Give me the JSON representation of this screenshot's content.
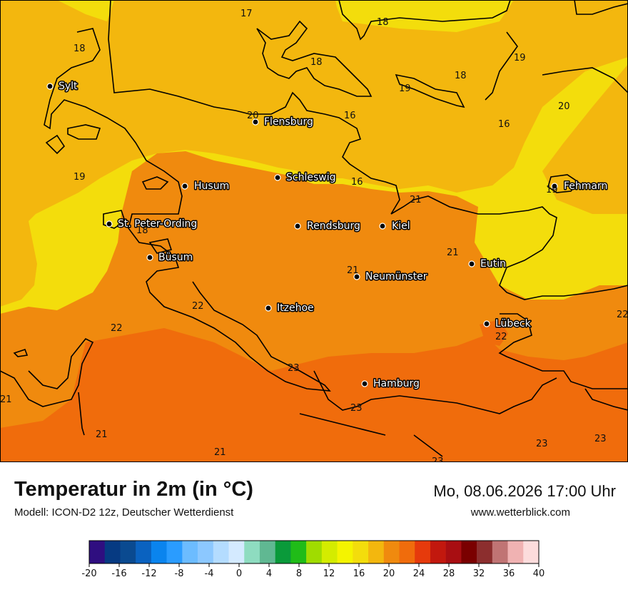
{
  "title": "Temperatur in 2m (in °C)",
  "model": "Modell: ICON-D2 12z, Deutscher Wetterdienst",
  "datetime": "Mo, 08.06.2026 17:00 Uhr",
  "website": "www.wetterblick.com",
  "colors": {
    "t16": "#f3dd0c",
    "t18": "#f3b70e",
    "t20": "#f08a0e",
    "t22": "#f06c0c",
    "sea_cold": "#eaf700",
    "coast": "#000000"
  },
  "cities": [
    {
      "name": "Sylt"
    },
    {
      "name": "Flensburg"
    },
    {
      "name": "Schleswig"
    },
    {
      "name": "Husum"
    },
    {
      "name": "Fehmarn"
    },
    {
      "name": "St. Peter-Ording"
    },
    {
      "name": "Rendsburg"
    },
    {
      "name": "Kiel"
    },
    {
      "name": "Büsum"
    },
    {
      "name": "Eutin"
    },
    {
      "name": "Neumünster"
    },
    {
      "name": "Itzehoe"
    },
    {
      "name": "Lübeck"
    },
    {
      "name": "Hamburg"
    }
  ],
  "isotherm_labels": [
    "17",
    "18",
    "18",
    "18",
    "19",
    "18",
    "19",
    "20",
    "20",
    "16",
    "16",
    "19",
    "16",
    "19",
    "21",
    "18",
    "21",
    "21",
    "22",
    "22",
    "22",
    "22",
    "23",
    "21",
    "23",
    "21",
    "21",
    "23",
    "23",
    "23"
  ],
  "legend": {
    "ticks": [
      "-20",
      "-16",
      "-12",
      "-8",
      "-4",
      "0",
      "4",
      "8",
      "12",
      "16",
      "20",
      "24",
      "28",
      "32",
      "36",
      "40"
    ],
    "colors": [
      "#2f0e80",
      "#063a82",
      "#0a4a90",
      "#0a62c0",
      "#0a84ee",
      "#2a9cff",
      "#6cbcff",
      "#8cc8ff",
      "#b4dcff",
      "#d4eaff",
      "#8edcc0",
      "#60b892",
      "#0a9a3a",
      "#20bc18",
      "#a0dc00",
      "#d4ec00",
      "#f4f400",
      "#f3dd0c",
      "#f3b70e",
      "#f08a0e",
      "#f06c0c",
      "#e63a0c",
      "#c2180e",
      "#a80e12",
      "#7a0000",
      "#8c2e2e",
      "#c07474",
      "#f0b2b2",
      "#fcdcdc"
    ]
  }
}
